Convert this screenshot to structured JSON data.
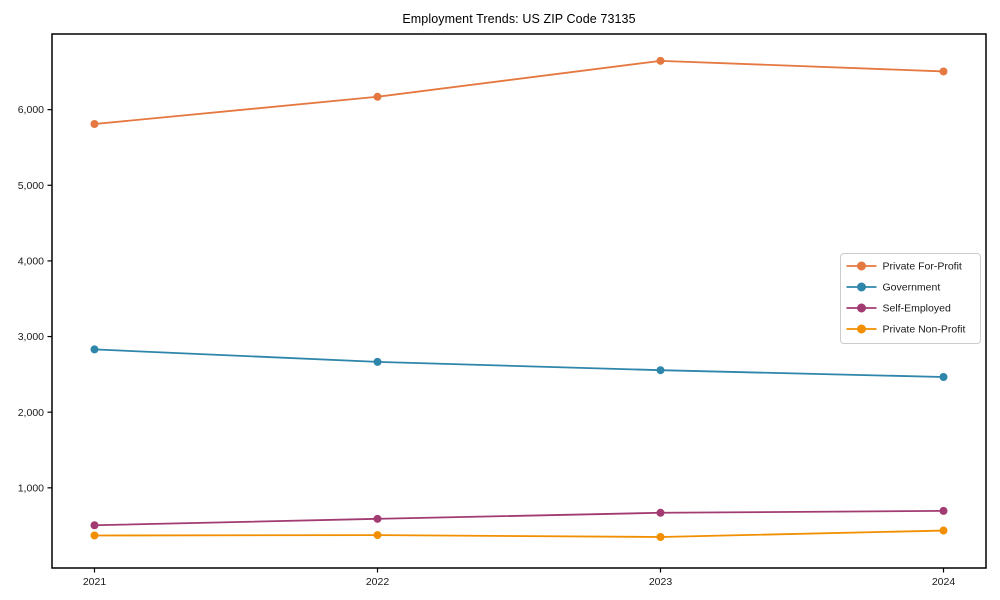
{
  "figure": {
    "title": "Employment Trends: US ZIP Code 73135",
    "background": "#ffffff"
  },
  "chart_data": {
    "type": "line",
    "title": "Employment Trends: US ZIP Code 73135",
    "xlabel": "",
    "ylabel": "",
    "x_labels": [
      "2021",
      "2022",
      "2023",
      "2024"
    ],
    "series": [
      {
        "name": "Private For-Profit",
        "color": "#e57840",
        "values": [
          5810,
          6170,
          6645,
          6505
        ]
      },
      {
        "name": "Government",
        "color": "#2e86ab",
        "values": [
          2830,
          2665,
          2555,
          2465
        ]
      },
      {
        "name": "Self-Employed",
        "color": "#a23b72",
        "values": [
          505,
          590,
          670,
          695
        ]
      },
      {
        "name": "Private Non-Profit",
        "color": "#f18f01",
        "values": [
          370,
          375,
          350,
          435
        ]
      }
    ],
    "ylim": [
      -60,
      7000
    ],
    "yticks": [
      1000,
      2000,
      3000,
      4000,
      5000,
      6000
    ],
    "ytick_labels": [
      "1,000",
      "2,000",
      "3,000",
      "4,000",
      "5,000",
      "6,000"
    ],
    "grid": false,
    "legend_position": "center-right",
    "marker": "circle",
    "axis_color": "#000000",
    "text_color": "#1a1a1a",
    "legend_border_color": "#cccccc",
    "legend_background": "#ffffff"
  }
}
